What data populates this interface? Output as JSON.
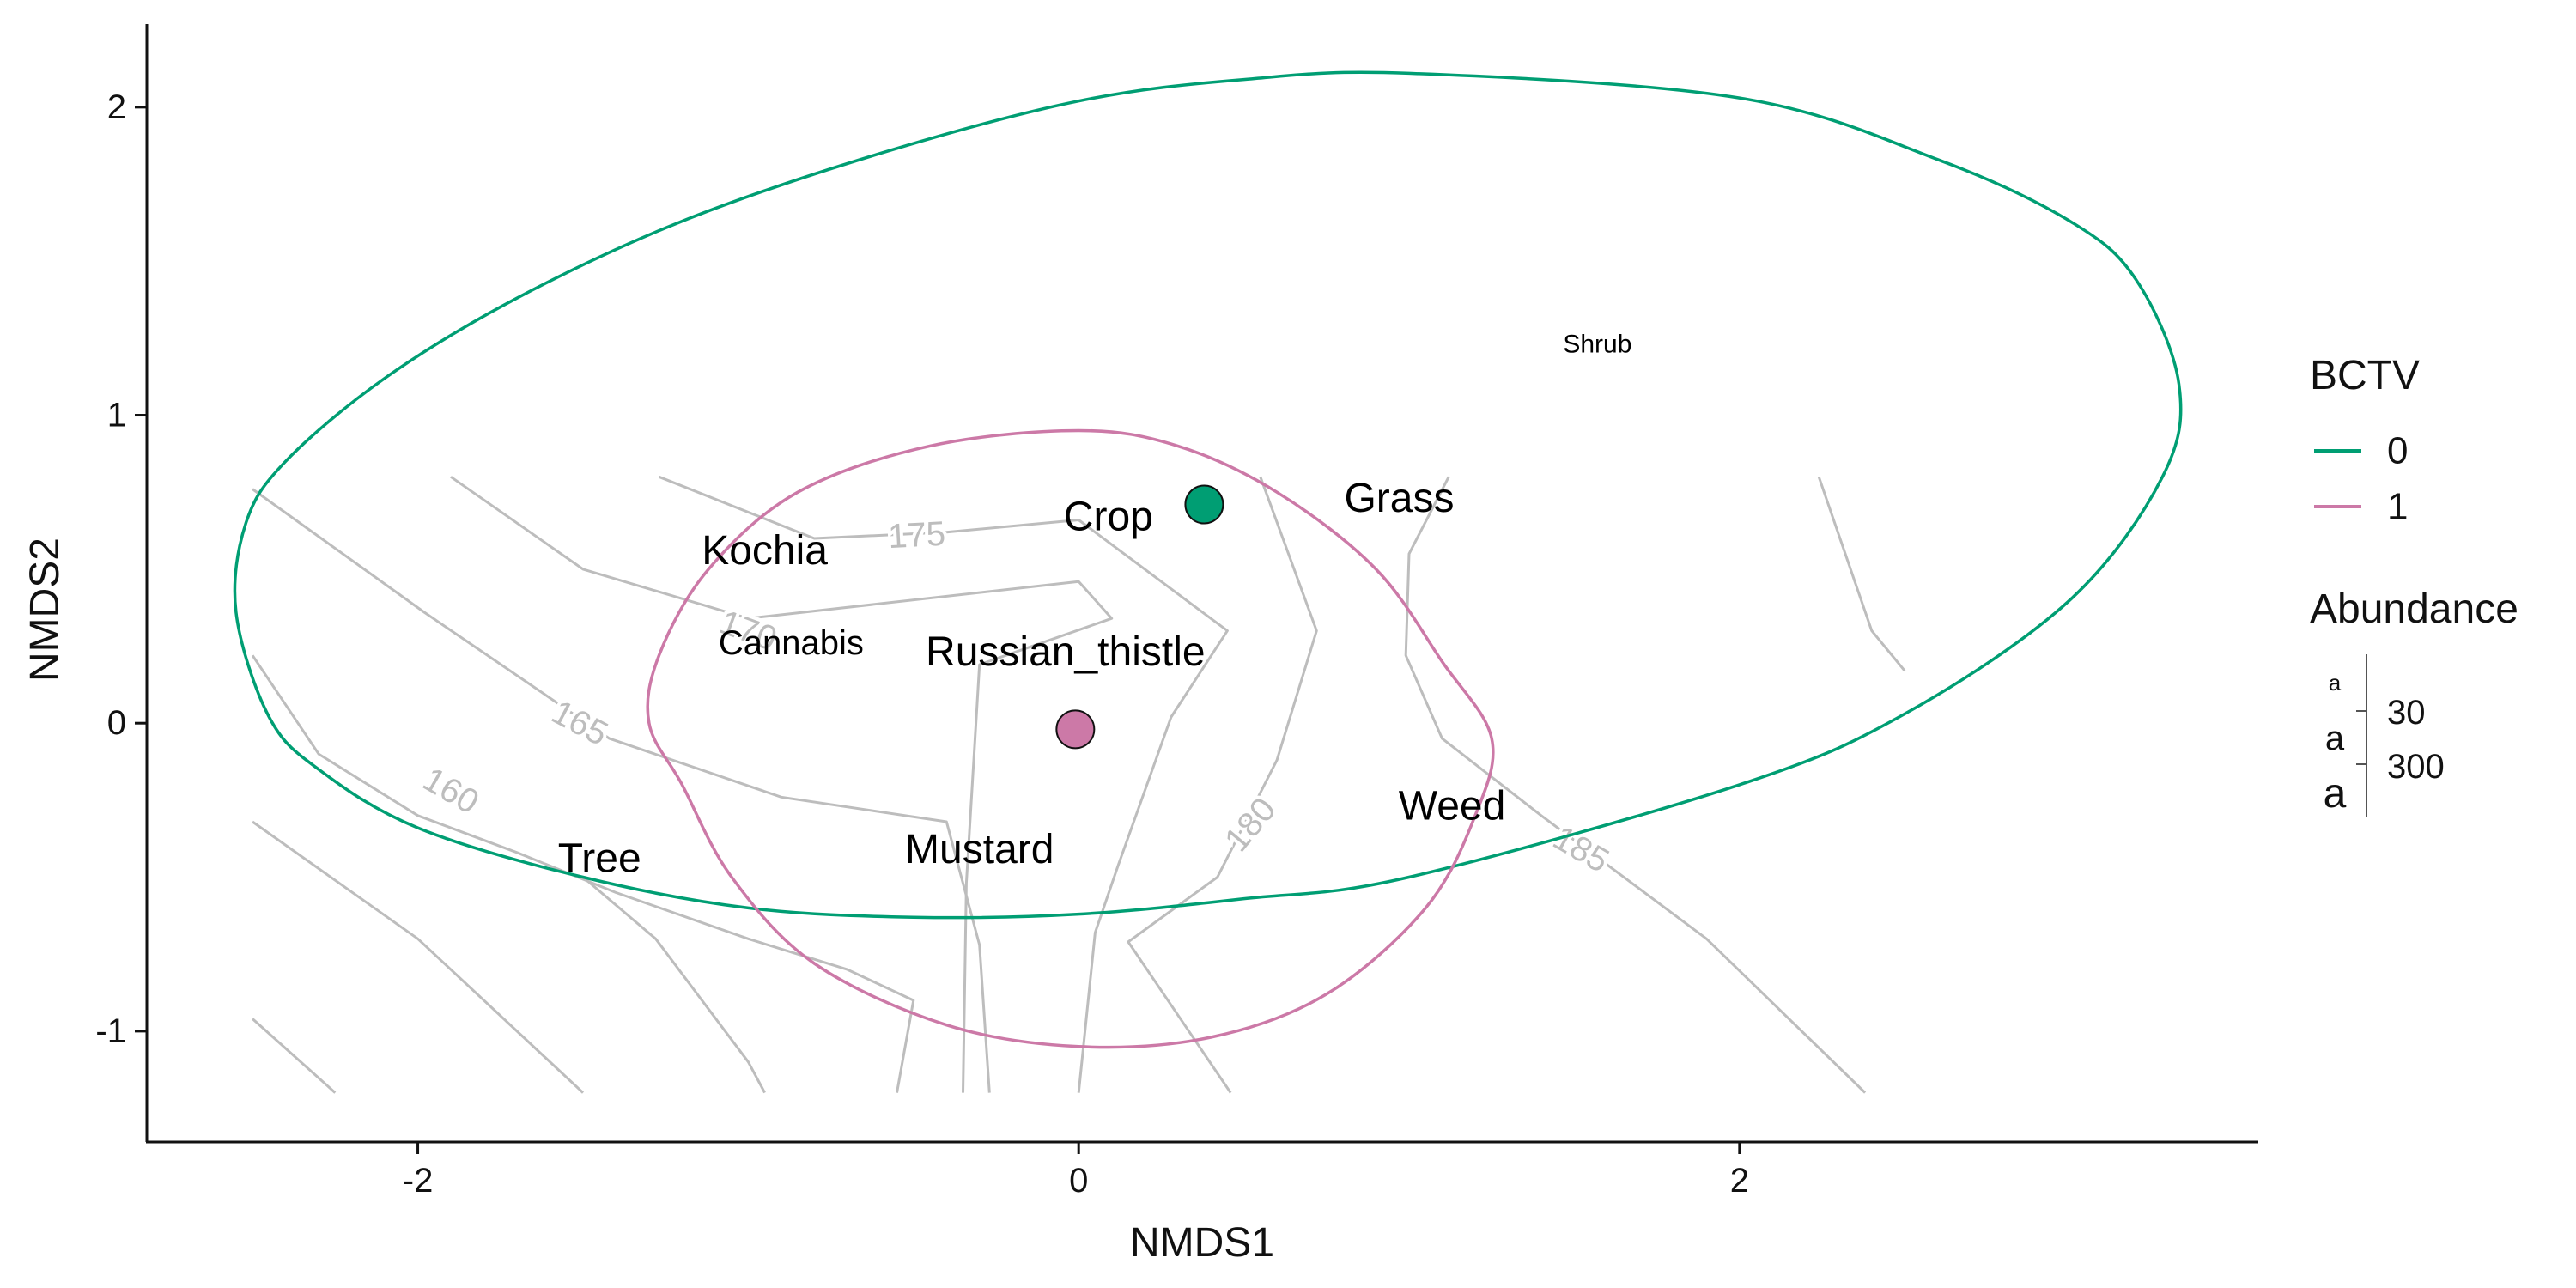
{
  "chart_data": {
    "type": "scatter",
    "xlabel": "NMDS1",
    "ylabel": "NMDS2",
    "xlim": [
      -2.82,
      3.57
    ],
    "ylim": [
      -1.36,
      2.27
    ],
    "x_ticks": [
      -2,
      0,
      2
    ],
    "y_ticks": [
      -1,
      0,
      1,
      2
    ],
    "grid": false,
    "legend_position": "right",
    "colors": {
      "bctv_0": "#009E73",
      "bctv_1": "#CC79A7",
      "contour": "#bdbdbd"
    },
    "ellipses": [
      {
        "group": "0",
        "color": "#009E73",
        "points": [
          [
            1.0,
            2.11
          ],
          [
            2.0,
            2.03
          ],
          [
            2.6,
            1.83
          ],
          [
            3.0,
            1.63
          ],
          [
            3.2,
            1.44
          ],
          [
            3.33,
            1.1
          ],
          [
            3.28,
            0.8
          ],
          [
            3.0,
            0.4
          ],
          [
            2.5,
            0.03
          ],
          [
            2.0,
            -0.2
          ],
          [
            1.0,
            -0.5
          ],
          [
            0.5,
            -0.57
          ],
          [
            0.0,
            -0.62
          ],
          [
            -0.5,
            -0.63
          ],
          [
            -1.0,
            -0.6
          ],
          [
            -1.5,
            -0.5
          ],
          [
            -2.0,
            -0.34
          ],
          [
            -2.3,
            -0.15
          ],
          [
            -2.45,
            0.02
          ],
          [
            -2.55,
            0.36
          ],
          [
            -2.52,
            0.65
          ],
          [
            -2.4,
            0.85
          ],
          [
            -2.1,
            1.12
          ],
          [
            -1.7,
            1.38
          ],
          [
            -1.2,
            1.63
          ],
          [
            -0.6,
            1.85
          ],
          [
            0.0,
            2.02
          ],
          [
            0.5,
            2.09
          ]
        ]
      },
      {
        "group": "1",
        "color": "#CC79A7",
        "points": [
          [
            0.0,
            0.95
          ],
          [
            0.3,
            0.9
          ],
          [
            0.6,
            0.75
          ],
          [
            0.9,
            0.5
          ],
          [
            1.1,
            0.2
          ],
          [
            1.25,
            -0.05
          ],
          [
            1.2,
            -0.3
          ],
          [
            1.05,
            -0.6
          ],
          [
            0.75,
            -0.88
          ],
          [
            0.4,
            -1.02
          ],
          [
            0.0,
            -1.05
          ],
          [
            -0.4,
            -0.98
          ],
          [
            -0.8,
            -0.78
          ],
          [
            -1.05,
            -0.5
          ],
          [
            -1.2,
            -0.2
          ],
          [
            -1.3,
            0.0
          ],
          [
            -1.27,
            0.22
          ],
          [
            -1.12,
            0.5
          ],
          [
            -0.85,
            0.75
          ],
          [
            -0.45,
            0.9
          ]
        ]
      }
    ],
    "contours": [
      {
        "level": "",
        "points": [
          [
            -2.5,
            0.76
          ],
          [
            -1.98,
            0.36
          ],
          [
            -1.42,
            -0.05
          ],
          [
            -0.9,
            -0.24
          ],
          [
            -0.4,
            -0.32
          ],
          [
            -0.3,
            -0.72
          ],
          [
            -0.27,
            -1.2
          ]
        ]
      },
      {
        "level": "",
        "points": [
          [
            -1.9,
            0.8
          ],
          [
            -1.5,
            0.5
          ],
          [
            -1.0,
            0.34
          ],
          [
            0.0,
            0.46
          ],
          [
            0.1,
            0.34
          ],
          [
            -0.3,
            0.19
          ],
          [
            -0.34,
            -0.52
          ],
          [
            -0.35,
            -1.2
          ]
        ]
      },
      {
        "level": "",
        "points": [
          [
            -1.27,
            0.8
          ],
          [
            -0.8,
            0.6
          ],
          [
            -0.4,
            0.62
          ],
          [
            0.0,
            0.66
          ],
          [
            0.45,
            0.3
          ],
          [
            0.28,
            0.02
          ],
          [
            0.12,
            -0.46
          ],
          [
            0.05,
            -0.68
          ],
          [
            0.0,
            -1.2
          ]
        ]
      },
      {
        "level": "",
        "points": [
          [
            0.55,
            0.8
          ],
          [
            0.72,
            0.3
          ],
          [
            0.6,
            -0.12
          ],
          [
            0.42,
            -0.5
          ],
          [
            0.15,
            -0.71
          ],
          [
            0.46,
            -1.2
          ]
        ]
      },
      {
        "level": "",
        "points": [
          [
            1.12,
            0.8
          ],
          [
            1.0,
            0.55
          ],
          [
            0.99,
            0.22
          ],
          [
            1.1,
            -0.05
          ],
          [
            1.4,
            -0.3
          ],
          [
            1.9,
            -0.7
          ],
          [
            2.38,
            -1.2
          ]
        ]
      },
      {
        "level": "",
        "points": [
          [
            2.24,
            0.8
          ],
          [
            2.4,
            0.3
          ],
          [
            2.5,
            0.17
          ]
        ]
      },
      {
        "level": "",
        "points": [
          [
            -2.5,
            0.22
          ],
          [
            -2.3,
            -0.1
          ],
          [
            -2.0,
            -0.3
          ],
          [
            -1.7,
            -0.42
          ],
          [
            -1.4,
            -0.55
          ],
          [
            -1.0,
            -0.7
          ],
          [
            -0.7,
            -0.8
          ],
          [
            -0.5,
            -0.9
          ],
          [
            -0.55,
            -1.2
          ]
        ]
      },
      {
        "level": "",
        "points": [
          [
            -2.5,
            -0.32
          ],
          [
            -2.0,
            -0.7
          ],
          [
            -1.5,
            -1.2
          ]
        ]
      },
      {
        "level": "",
        "points": [
          [
            -2.5,
            -0.96
          ],
          [
            -2.25,
            -1.2
          ]
        ]
      },
      {
        "level": "",
        "points": [
          [
            -1.5,
            -0.5
          ],
          [
            -1.28,
            -0.7
          ],
          [
            -1.0,
            -1.1
          ],
          [
            -0.95,
            -1.2
          ]
        ]
      }
    ],
    "contour_labels": [
      {
        "text": "175",
        "x": -0.49,
        "y": 0.61,
        "angle": -3
      },
      {
        "text": "170",
        "x": -1.0,
        "y": 0.3,
        "angle": 20
      },
      {
        "text": "165",
        "x": -1.51,
        "y": 0.0,
        "angle": 28
      },
      {
        "text": "160",
        "x": -1.9,
        "y": -0.22,
        "angle": 30
      },
      {
        "text": "180",
        "x": 0.52,
        "y": -0.33,
        "angle": -50
      },
      {
        "text": "185",
        "x": 1.52,
        "y": -0.41,
        "angle": 30
      }
    ],
    "centroids": [
      {
        "group": "0",
        "x": 0.38,
        "y": 0.71,
        "color": "#009E73"
      },
      {
        "group": "1",
        "x": -0.01,
        "y": -0.02,
        "color": "#CC79A7"
      }
    ],
    "species": [
      {
        "label": "Shrub",
        "x": 1.57,
        "y": 1.23,
        "size": "small"
      },
      {
        "label": "Grass",
        "x": 0.97,
        "y": 0.73,
        "size": "large"
      },
      {
        "label": "Crop",
        "x": 0.09,
        "y": 0.67,
        "size": "large"
      },
      {
        "label": "Kochia",
        "x": -0.95,
        "y": 0.56,
        "size": "large"
      },
      {
        "label": "Cannabis",
        "x": -0.87,
        "y": 0.26,
        "size": "medium"
      },
      {
        "label": "Russian_thistle",
        "x": -0.04,
        "y": 0.23,
        "size": "large"
      },
      {
        "label": "Weed",
        "x": 1.13,
        "y": -0.27,
        "size": "large"
      },
      {
        "label": "Mustard",
        "x": -0.3,
        "y": -0.41,
        "size": "large"
      },
      {
        "label": "Tree",
        "x": -1.45,
        "y": -0.44,
        "size": "large"
      }
    ]
  },
  "legend": {
    "color_title": "BCTV",
    "color_items": [
      {
        "label": "0",
        "color": "#009E73"
      },
      {
        "label": "1",
        "color": "#CC79A7"
      }
    ],
    "size_title": "Abundance",
    "size_glyph": "a",
    "size_items": [
      "30",
      "300"
    ]
  }
}
